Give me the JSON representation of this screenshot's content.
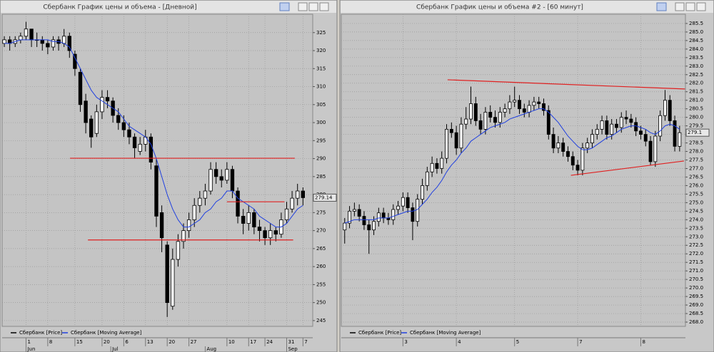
{
  "chart_data": [
    {
      "type": "candlestick",
      "title": "Сбербанк График цены и объема - [Дневной]",
      "xlim": [
        -0.4,
        56.8
      ],
      "ylim": [
        243.4,
        330.1
      ],
      "yticks": [
        245,
        250,
        255,
        260,
        265,
        270,
        275,
        280,
        285,
        290,
        295,
        300,
        305,
        310,
        315,
        320,
        325
      ],
      "xticks": [
        {
          "value": 4,
          "label": "1"
        },
        {
          "value": 8,
          "label": "8"
        },
        {
          "value": 13,
          "label": "15"
        },
        {
          "value": 18,
          "label": "20"
        },
        {
          "value": 22,
          "label": "6"
        },
        {
          "value": 26,
          "label": "13"
        },
        {
          "value": 30,
          "label": "20"
        },
        {
          "value": 34,
          "label": "27"
        },
        {
          "value": 41,
          "label": "10"
        },
        {
          "value": 45,
          "label": "17"
        },
        {
          "value": 48,
          "label": "24"
        },
        {
          "value": 52,
          "label": "31"
        },
        {
          "value": 55,
          "label": "7"
        }
      ],
      "xticks2": [
        {
          "value": 4,
          "label": "Jun"
        },
        {
          "value": 19.6,
          "label": "Jul"
        },
        {
          "value": 37,
          "label": "Aug"
        },
        {
          "value": 52,
          "label": "Sep"
        }
      ],
      "grid": true,
      "series": [
        {
          "name": "Сбербанк [Price]",
          "color": "#000000",
          "open": [
            322,
            323,
            322,
            323,
            324,
            326,
            323,
            323,
            322,
            321,
            323,
            322,
            324,
            319,
            314,
            306,
            301,
            297,
            303,
            307,
            306,
            302,
            300,
            298,
            296,
            292,
            294,
            296,
            288,
            275,
            266,
            249,
            262,
            267,
            270,
            273,
            277,
            279,
            281,
            287,
            285,
            284,
            287,
            281,
            274,
            272,
            275,
            271,
            270,
            268,
            270,
            269,
            273,
            276,
            279,
            281
          ],
          "high": [
            324,
            324,
            324,
            325,
            328,
            326,
            325,
            324,
            323,
            324,
            324,
            326,
            325,
            320,
            315,
            308,
            302,
            305,
            309,
            309,
            307,
            304,
            302,
            300,
            297,
            296,
            298,
            297,
            290,
            277,
            267,
            265,
            269,
            272,
            275,
            279,
            281,
            283,
            289,
            289,
            287,
            289,
            288,
            282,
            276,
            277,
            276,
            273,
            271,
            272,
            271,
            275,
            278,
            281,
            283,
            282
          ],
          "low": [
            321,
            320,
            321,
            322,
            323,
            321,
            321,
            320,
            319,
            320,
            320,
            321,
            318,
            313,
            303,
            297,
            293,
            296,
            301,
            304,
            300,
            298,
            296,
            294,
            290,
            291,
            292,
            287,
            271,
            264,
            246,
            248,
            260,
            265,
            268,
            271,
            275,
            277,
            280,
            283,
            282,
            283,
            279,
            272,
            269,
            270,
            269,
            267,
            266,
            266,
            267,
            268,
            272,
            275,
            277,
            277
          ],
          "close": [
            323,
            322,
            323,
            324,
            326,
            323,
            323,
            322,
            321,
            323,
            322,
            324,
            320,
            315,
            305,
            300,
            296,
            303,
            307,
            306,
            302,
            300,
            298,
            296,
            293,
            294,
            296,
            289,
            274,
            268,
            250,
            262,
            267,
            270,
            273,
            277,
            279,
            281,
            287,
            285,
            284,
            287,
            281,
            274,
            272,
            275,
            271,
            270,
            268,
            270,
            269,
            273,
            276,
            279,
            281,
            279.14
          ]
        },
        {
          "name": "Сбербанк [Moving Average]",
          "color": "#2040e0",
          "values": [
            322,
            322,
            322.5,
            323,
            323,
            323,
            323,
            323,
            323,
            322.5,
            322.5,
            322,
            321,
            318,
            315,
            312,
            309,
            307,
            306,
            305,
            304,
            303,
            301,
            299,
            298,
            297,
            296,
            294,
            290,
            285,
            280,
            276,
            273,
            271,
            271,
            272,
            273,
            275,
            276,
            278,
            279,
            281,
            281,
            279,
            278,
            277,
            276,
            274,
            273,
            272,
            271,
            271,
            272,
            274,
            276,
            277
          ]
        }
      ],
      "lines": [
        {
          "color": "#e02020",
          "x": [
            12.1,
            53.5
          ],
          "y": [
            290.1,
            290.1
          ]
        },
        {
          "color": "#e02020",
          "x": [
            15.4,
            53.2
          ],
          "y": [
            267.4,
            267.4
          ]
        },
        {
          "color": "#e02020",
          "x": [
            41,
            51.6
          ],
          "y": [
            278.0,
            278.0
          ]
        }
      ],
      "price_label": {
        "value": 279.14,
        "label": "279.14"
      }
    },
    {
      "type": "candlestick",
      "title": "Сбербанк График цены и объема #2 - [60 минут]",
      "xlim": [
        -0.7,
        70.2
      ],
      "ylim": [
        267.75,
        286.04
      ],
      "yticks": [
        {
          "value": 268,
          "label": "268.0"
        },
        268.5,
        {
          "value": 269,
          "label": "269.0"
        },
        269.5,
        {
          "value": 270,
          "label": "270.0"
        },
        270.5,
        {
          "value": 271,
          "label": "271.0"
        },
        271.5,
        {
          "value": 272,
          "label": "272.0"
        },
        272.5,
        {
          "value": 273,
          "label": "273.0"
        },
        273.5,
        {
          "value": 274,
          "label": "274.0"
        },
        274.5,
        {
          "value": 275,
          "label": "275.0"
        },
        275.5,
        {
          "value": 276,
          "label": "276.0"
        },
        276.5,
        {
          "value": 277,
          "label": "277.0"
        },
        277.5,
        {
          "value": 278,
          "label": "278.0"
        },
        278.5,
        {
          "value": 279,
          "label": "279.0"
        },
        279.5,
        {
          "value": 280,
          "label": "280.0"
        },
        280.5,
        {
          "value": 281,
          "label": "281.0"
        },
        281.5,
        {
          "value": 282,
          "label": "282.0"
        },
        282.5,
        {
          "value": 283,
          "label": "283.0"
        },
        283.5,
        {
          "value": 284,
          "label": "284.0"
        },
        284.5,
        {
          "value": 285,
          "label": "285.0"
        },
        285.5
      ],
      "xticks": [
        {
          "value": 12,
          "label": "3"
        },
        {
          "value": 23,
          "label": "4"
        },
        {
          "value": 35,
          "label": "5"
        },
        {
          "value": 48,
          "label": "7"
        },
        {
          "value": 61,
          "label": "8"
        }
      ],
      "grid": true,
      "series": [
        {
          "name": "Сбербанк [Price]",
          "color": "#000000",
          "open": [
            273.4,
            273.8,
            274.5,
            274.6,
            274.2,
            273.7,
            273.4,
            273.9,
            274.4,
            274.1,
            274.0,
            274.6,
            274.8,
            275.3,
            274.7,
            273.9,
            275.2,
            276.0,
            276.8,
            277.3,
            277.0,
            277.6,
            279.3,
            279.1,
            278.2,
            279.6,
            279.9,
            280.8,
            279.8,
            279.3,
            280.3,
            280.0,
            279.7,
            280.3,
            280.5,
            280.9,
            281.0,
            280.5,
            280.3,
            280.7,
            280.9,
            280.8,
            280.4,
            279.0,
            278.2,
            278.5,
            278.0,
            277.7,
            277.2,
            276.9,
            278.2,
            278.5,
            279.0,
            279.3,
            279.8,
            279.0,
            279.6,
            279.4,
            280.0,
            279.9,
            279.7,
            279.2,
            279.0,
            278.6,
            277.4,
            278.9,
            280.1,
            281.0,
            279.8,
            278.3
          ],
          "high": [
            274.1,
            274.8,
            275.0,
            274.9,
            274.5,
            274.0,
            274.2,
            274.7,
            274.7,
            274.4,
            274.9,
            275.1,
            275.6,
            275.6,
            275.0,
            275.5,
            276.4,
            277.1,
            277.7,
            277.6,
            278.0,
            279.6,
            279.7,
            279.5,
            280.0,
            280.6,
            281.8,
            281.2,
            280.2,
            280.6,
            280.7,
            280.4,
            280.6,
            280.8,
            281.3,
            281.8,
            281.3,
            280.8,
            281.0,
            281.2,
            281.2,
            281.1,
            280.7,
            279.4,
            278.9,
            278.8,
            278.3,
            278.0,
            277.5,
            278.5,
            278.8,
            279.3,
            279.6,
            280.1,
            280.1,
            279.9,
            279.9,
            280.3,
            280.4,
            280.2,
            280.0,
            279.5,
            279.3,
            278.9,
            279.2,
            280.4,
            281.6,
            281.3,
            280.1,
            279.5
          ],
          "low": [
            272.6,
            273.5,
            274.2,
            273.9,
            273.4,
            272.0,
            273.1,
            273.6,
            273.8,
            273.7,
            273.7,
            274.3,
            274.5,
            274.4,
            272.8,
            273.6,
            274.9,
            275.7,
            276.5,
            276.7,
            276.7,
            277.3,
            278.8,
            277.8,
            277.9,
            279.3,
            279.6,
            279.5,
            279.0,
            279.0,
            279.7,
            279.4,
            279.4,
            280.0,
            280.2,
            280.6,
            280.2,
            280.0,
            280.0,
            280.4,
            280.5,
            280.1,
            278.7,
            277.9,
            277.9,
            277.7,
            277.4,
            276.9,
            276.6,
            276.6,
            277.9,
            278.2,
            278.7,
            279.0,
            278.7,
            278.7,
            279.1,
            279.1,
            279.6,
            279.4,
            278.9,
            278.7,
            278.3,
            277.2,
            277.1,
            278.6,
            279.8,
            279.5,
            278.0,
            278.0
          ],
          "close": [
            273.8,
            274.5,
            274.6,
            274.2,
            273.7,
            273.4,
            273.9,
            274.4,
            274.1,
            274.0,
            274.6,
            274.8,
            275.3,
            274.7,
            273.9,
            275.2,
            276.0,
            276.8,
            277.3,
            277.0,
            277.6,
            279.3,
            279.1,
            278.2,
            279.6,
            279.9,
            280.8,
            279.8,
            279.3,
            280.3,
            280.0,
            279.7,
            280.3,
            280.5,
            280.9,
            281.0,
            280.5,
            280.3,
            280.7,
            280.9,
            280.8,
            280.4,
            279.0,
            278.2,
            278.5,
            278.0,
            277.7,
            277.2,
            276.9,
            278.2,
            278.5,
            279.0,
            279.3,
            279.8,
            279.0,
            279.6,
            279.4,
            280.0,
            279.9,
            279.7,
            279.2,
            279.0,
            278.6,
            277.4,
            278.9,
            280.1,
            281.0,
            279.8,
            278.3,
            279.1
          ]
        },
        {
          "name": "Сбербанк [Moving Average]",
          "color": "#2040e0",
          "values": [
            273.8,
            273.9,
            274.0,
            274.0,
            274.0,
            274.0,
            274.0,
            274.1,
            274.1,
            274.1,
            274.2,
            274.3,
            274.4,
            274.5,
            274.5,
            274.6,
            274.9,
            275.2,
            275.6,
            275.9,
            276.3,
            276.8,
            277.2,
            277.5,
            277.9,
            278.2,
            278.6,
            278.8,
            279.0,
            279.2,
            279.4,
            279.5,
            279.6,
            279.7,
            279.9,
            280.0,
            280.1,
            280.2,
            280.3,
            280.4,
            280.5,
            280.5,
            280.3,
            280.0,
            279.7,
            279.3,
            278.9,
            278.6,
            278.3,
            278.1,
            278.1,
            278.2,
            278.4,
            278.6,
            278.8,
            278.9,
            279.1,
            279.3,
            279.4,
            279.5,
            279.5,
            279.4,
            279.3,
            279.1,
            279.0,
            279.2,
            279.5,
            279.6,
            279.5,
            279.3
          ]
        }
      ],
      "lines": [
        {
          "color": "#e02020",
          "x": [
            21.2,
            70.1
          ],
          "y": [
            282.2,
            281.66
          ]
        },
        {
          "color": "#e02020",
          "x": [
            46.6,
            69.9
          ],
          "y": [
            276.6,
            277.44
          ]
        }
      ],
      "price_label": {
        "value": 279.1,
        "label": "279.1"
      }
    }
  ]
}
